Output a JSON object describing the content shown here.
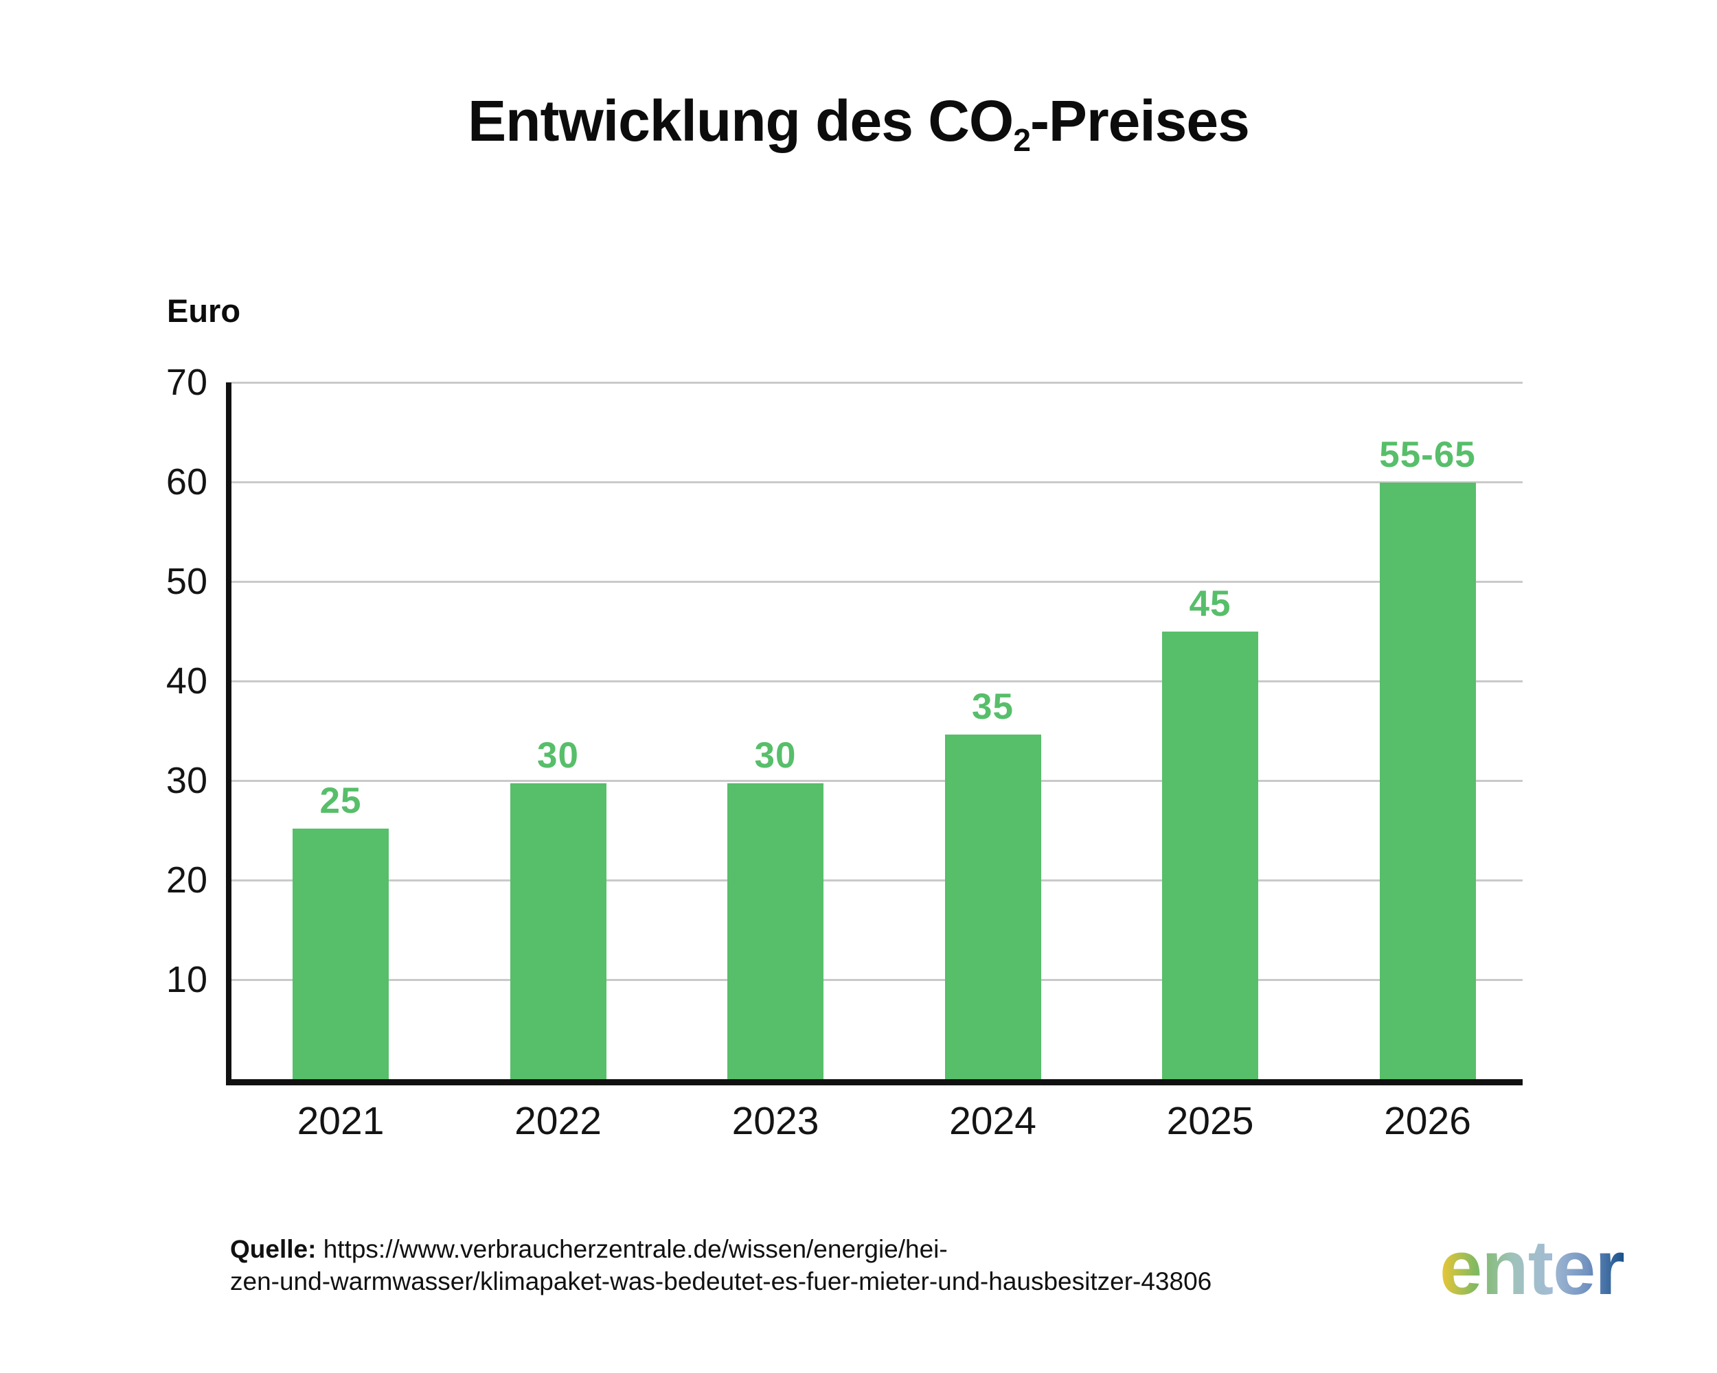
{
  "title": {
    "main": "Entwicklung des CO",
    "sub": "2",
    "suffix": "-Preises"
  },
  "y_axis": {
    "label": "Euro"
  },
  "chart_data": {
    "type": "bar",
    "title": "Entwicklung des CO₂-Preises",
    "xlabel": "",
    "ylabel": "Euro",
    "categories": [
      "2021",
      "2022",
      "2023",
      "2024",
      "2025",
      "2026"
    ],
    "values": [
      25,
      30,
      30,
      35,
      45,
      60
    ],
    "value_labels": [
      "25",
      "30",
      "30",
      "35",
      "45",
      "55-65"
    ],
    "value_2026_range": [
      55,
      65
    ],
    "bar_drawn_values": [
      25.2,
      29.7,
      29.7,
      34.6,
      45,
      59.9
    ],
    "yticks": [
      10,
      20,
      30,
      40,
      50,
      60,
      70
    ],
    "ylim": [
      0,
      70
    ],
    "grid": true,
    "legend": false,
    "bar_color": "#57BE6A",
    "label_color": "#57BE6A",
    "grid_color": "#C9C9C9",
    "axis_color": "#111111"
  },
  "source": {
    "label": "Quelle:",
    "line1": "https://www.verbraucherzentrale.de/wissen/energie/hei-",
    "line2": "zen-und-warmwasser/klimapaket-was-bedeutet-es-fuer-mieter-und-hausbesitzer-43806"
  },
  "logo": {
    "text": "enter",
    "gradient": [
      "#EFC733",
      "#7FB963",
      "#9FC2BC",
      "#A3BBD4",
      "#7292C0",
      "#17508A"
    ]
  }
}
